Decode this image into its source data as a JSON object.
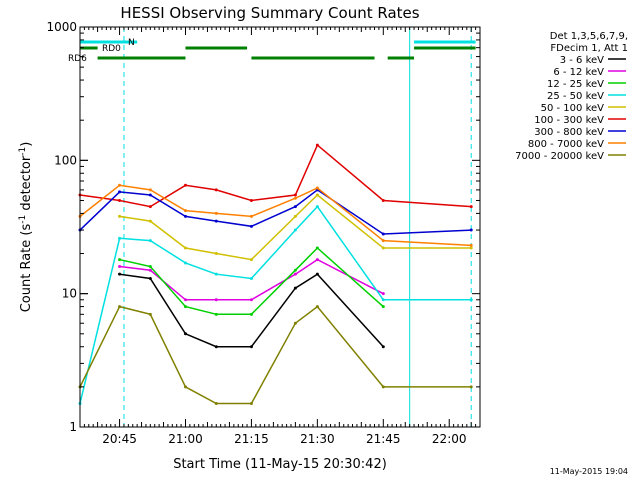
{
  "chart_data": {
    "type": "line",
    "title": "HESSI Observing Summary Count Rates",
    "xlabel": "Start Time (11-May-15 20:30:42)",
    "ylabel_main": "Count Rate (s",
    "ylabel_sup1": "-1",
    "ylabel_mid": " detector",
    "ylabel_sup2": "-1",
    "ylabel_end": ")",
    "y_scale": "log",
    "ylim": [
      1,
      1000
    ],
    "xlim_minutes_after_2030": [
      6,
      97
    ],
    "x_ticks": [
      {
        "minutes": 15,
        "label": "20:45"
      },
      {
        "minutes": 30,
        "label": "21:00"
      },
      {
        "minutes": 45,
        "label": "21:15"
      },
      {
        "minutes": 60,
        "label": "21:30"
      },
      {
        "minutes": 75,
        "label": "21:45"
      },
      {
        "minutes": 90,
        "label": "22:00"
      }
    ],
    "y_ticks": [
      {
        "value": 1,
        "label": "1"
      },
      {
        "value": 10,
        "label": "10"
      },
      {
        "value": 100,
        "label": "100"
      },
      {
        "value": 1000,
        "label": "1000"
      }
    ],
    "legend_placement": "right",
    "legend_header": [
      "Det 1,3,5,6,7,9,",
      "FDecim 1, Att 1"
    ],
    "series": [
      {
        "name": "3 - 6 keV",
        "color": "#000000",
        "values": [
          0,
          14,
          13,
          5,
          4,
          4,
          11,
          14,
          4,
          0
        ]
      },
      {
        "name": "6 - 12 keV",
        "color": "#e000e0",
        "values": [
          0,
          16,
          15,
          9,
          9,
          9,
          14,
          18,
          10,
          0
        ]
      },
      {
        "name": "12 - 25 keV",
        "color": "#00d000",
        "values": [
          0,
          18,
          16,
          8,
          7,
          7,
          15,
          22,
          8,
          0
        ]
      },
      {
        "name": "25 - 50 keV",
        "color": "#00e0e0",
        "values": [
          1.5,
          26,
          25,
          17,
          14,
          13,
          30,
          45,
          9,
          9
        ]
      },
      {
        "name": "50 - 100 keV",
        "color": "#d0c000",
        "values": [
          0,
          38,
          35,
          22,
          20,
          18,
          38,
          55,
          22,
          22
        ]
      },
      {
        "name": "100 - 300 keV",
        "color": "#e00000",
        "values": [
          55,
          50,
          45,
          65,
          60,
          50,
          55,
          130,
          50,
          45
        ]
      },
      {
        "name": "300 - 800 keV",
        "color": "#0000d0",
        "values": [
          30,
          58,
          55,
          38,
          35,
          32,
          45,
          60,
          28,
          30
        ]
      },
      {
        "name": "800 - 7000 keV",
        "color": "#ff8000",
        "values": [
          38,
          65,
          60,
          42,
          40,
          38,
          52,
          62,
          25,
          23
        ]
      },
      {
        "name": "7000 - 20000 keV",
        "color": "#808000",
        "values": [
          2,
          8,
          7,
          2,
          1.5,
          1.5,
          6,
          8,
          2,
          2
        ]
      }
    ],
    "sample_minutes": [
      6,
      15,
      22,
      30,
      37,
      45,
      55,
      60,
      75,
      95
    ],
    "flag_bars": [
      {
        "label": "N",
        "color": "#00e0e0",
        "segments": [
          [
            6,
            19
          ],
          [
            82,
            96
          ]
        ]
      },
      {
        "label": "RD0",
        "color": "#008000",
        "segments": [
          [
            6,
            10
          ],
          [
            30,
            44
          ],
          [
            82,
            96
          ]
        ]
      },
      {
        "label": "RD6",
        "color": "#008000",
        "segments": [
          [
            10,
            30
          ],
          [
            45,
            73
          ],
          [
            76,
            82
          ]
        ]
      }
    ],
    "vertical_markers": [
      {
        "minutes": 6,
        "style": "solid",
        "color": "#00e0e0"
      },
      {
        "minutes": 16,
        "style": "dashed",
        "color": "#00e0e0"
      },
      {
        "minutes": 81,
        "style": "solid",
        "color": "#00e0e0"
      },
      {
        "minutes": 95,
        "style": "dashed",
        "color": "#00e0e0"
      }
    ],
    "footer_timestamp": "11-May-2015 19:04"
  }
}
